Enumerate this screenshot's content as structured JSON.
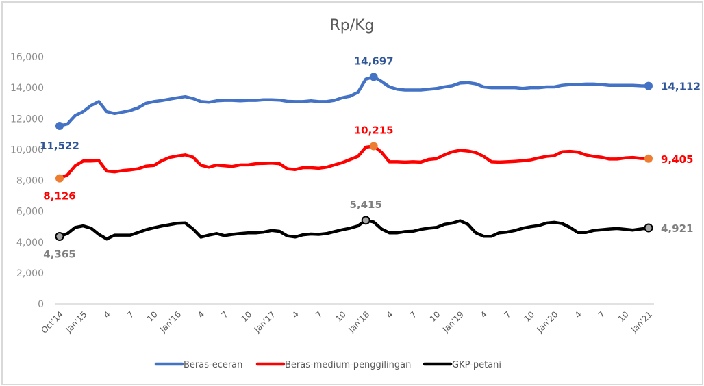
{
  "chart_data": {
    "type": "line",
    "title": "Rp/Kg",
    "xlabel": "",
    "ylabel": "",
    "ylim": [
      0,
      16000
    ],
    "yticks": [
      "0",
      "2,000",
      "4,000",
      "6,000",
      "8,000",
      "10,000",
      "12,000",
      "14,000",
      "16,000"
    ],
    "ytick_values": [
      0,
      2000,
      4000,
      6000,
      8000,
      10000,
      12000,
      14000,
      16000
    ],
    "x_start": "Oct 2014",
    "x_end": "Jan 2021",
    "xtick_labels": [
      "Oct'14",
      "Jan'15",
      "4",
      "7",
      "10",
      "Jan'16",
      "4",
      "7",
      "10",
      "Jan'17",
      "4",
      "7",
      "10",
      "Jan'18",
      "4",
      "7",
      "10",
      "Jan'19",
      "4",
      "7",
      "10",
      "Jan'20",
      "4",
      "7",
      "10",
      "Jan'21"
    ],
    "legend_position": "bottom",
    "grid": false,
    "series": [
      {
        "name": "Beras-eceran",
        "color": "#4472c4",
        "label_color": "#2f5597",
        "values": [
          11522,
          11650,
          12200,
          12450,
          12850,
          13100,
          12450,
          12330,
          12420,
          12520,
          12700,
          12990,
          13100,
          13170,
          13260,
          13350,
          13420,
          13300,
          13100,
          13060,
          13150,
          13180,
          13180,
          13150,
          13180,
          13180,
          13220,
          13220,
          13200,
          13120,
          13100,
          13100,
          13150,
          13100,
          13100,
          13180,
          13350,
          13450,
          13700,
          14550,
          14697,
          14400,
          14050,
          13900,
          13850,
          13850,
          13850,
          13900,
          13950,
          14050,
          14120,
          14300,
          14330,
          14250,
          14050,
          14000,
          14000,
          14000,
          14000,
          13950,
          14000,
          14000,
          14050,
          14050,
          14150,
          14200,
          14200,
          14230,
          14230,
          14200,
          14150,
          14150,
          14150,
          14150,
          14120,
          14112
        ],
        "annotations": [
          {
            "index": 0,
            "label": "11,522"
          },
          {
            "index": 40,
            "label": "14,697"
          },
          {
            "index": 75,
            "label": "14,112"
          }
        ]
      },
      {
        "name": "Beras-medium-penggilingan",
        "color": "#ff0000",
        "label_color": "#ff0000",
        "values": [
          8126,
          8350,
          8950,
          9250,
          9250,
          9280,
          8600,
          8550,
          8630,
          8680,
          8750,
          8920,
          8960,
          9270,
          9480,
          9580,
          9650,
          9500,
          8980,
          8850,
          8990,
          8940,
          8900,
          9000,
          9000,
          9080,
          9100,
          9120,
          9080,
          8750,
          8700,
          8820,
          8820,
          8780,
          8850,
          9000,
          9150,
          9350,
          9550,
          10150,
          10215,
          9820,
          9200,
          9200,
          9180,
          9200,
          9180,
          9350,
          9400,
          9650,
          9850,
          9950,
          9900,
          9800,
          9550,
          9200,
          9180,
          9200,
          9230,
          9270,
          9330,
          9450,
          9550,
          9600,
          9850,
          9880,
          9830,
          9650,
          9550,
          9500,
          9380,
          9380,
          9450,
          9480,
          9420,
          9405
        ],
        "annotations": [
          {
            "index": 0,
            "label": "8,126"
          },
          {
            "index": 40,
            "label": "10,215"
          },
          {
            "index": 75,
            "label": "9,405"
          }
        ]
      },
      {
        "name": "GKP-petani",
        "color": "#000000",
        "label_color": "#7f7f7f",
        "values": [
          4365,
          4550,
          4950,
          5050,
          4900,
          4500,
          4200,
          4450,
          4450,
          4450,
          4620,
          4800,
          4930,
          5040,
          5130,
          5220,
          5240,
          4850,
          4320,
          4450,
          4550,
          4420,
          4500,
          4550,
          4600,
          4600,
          4650,
          4750,
          4700,
          4400,
          4330,
          4470,
          4520,
          4500,
          4550,
          4680,
          4800,
          4900,
          5050,
          5415,
          5300,
          4850,
          4600,
          4600,
          4680,
          4700,
          4820,
          4900,
          4950,
          5150,
          5230,
          5380,
          5150,
          4600,
          4380,
          4380,
          4600,
          4650,
          4750,
          4900,
          5000,
          5070,
          5230,
          5280,
          5200,
          4950,
          4620,
          4620,
          4750,
          4800,
          4850,
          4880,
          4830,
          4780,
          4850,
          4921
        ],
        "annotations": [
          {
            "index": 0,
            "label": "4,365"
          },
          {
            "index": 39,
            "label": "5,415"
          },
          {
            "index": 75,
            "label": "4,921"
          }
        ]
      }
    ]
  }
}
